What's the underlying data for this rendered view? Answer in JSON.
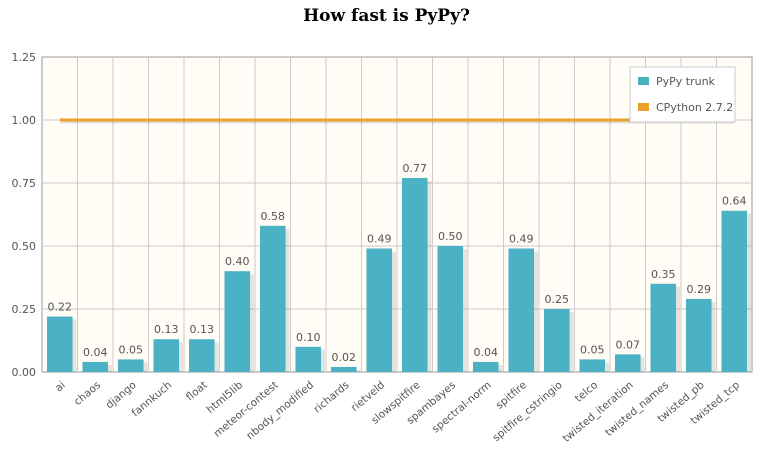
{
  "title": "How fast is PyPy?",
  "colors": {
    "bar": "#4bb2c5",
    "baseline": "#eaa228",
    "plot_bg": "#fffdf6",
    "grid": "#cccccc"
  },
  "chart_data": {
    "type": "bar",
    "title": "How fast is PyPy?",
    "xlabel": "",
    "ylabel": "",
    "ylim": [
      0,
      1.25
    ],
    "yticks": [
      "0.00",
      "0.25",
      "0.50",
      "0.75",
      "1.00",
      "1.25"
    ],
    "categories": [
      "ai",
      "chaos",
      "django",
      "fannkuch",
      "float",
      "html5lib",
      "meteor-contest",
      "nbody_modified",
      "richards",
      "rietveld",
      "slowspitfire",
      "spambayes",
      "spectral-norm",
      "spitfire",
      "spitfire_cstringio",
      "telco",
      "twisted_iteration",
      "twisted_names",
      "twisted_pb",
      "twisted_tcp"
    ],
    "series": [
      {
        "name": "PyPy trunk",
        "type": "bar",
        "values": [
          0.22,
          0.04,
          0.05,
          0.13,
          0.13,
          0.4,
          0.58,
          0.1,
          0.02,
          0.49,
          0.77,
          0.5,
          0.04,
          0.49,
          0.25,
          0.05,
          0.07,
          0.35,
          0.29,
          0.64
        ],
        "value_labels": [
          "0.22",
          "0.04",
          "0.05",
          "0.13",
          "0.13",
          "0.40",
          "0.58",
          "0.10",
          "0.02",
          "0.49",
          "0.77",
          "0.50",
          "0.04",
          "0.49",
          "0.25",
          "0.05",
          "0.07",
          "0.35",
          "0.29",
          "0.64"
        ],
        "labeled": [
          true,
          true,
          true,
          true,
          true,
          true,
          true,
          true,
          true,
          true,
          true,
          true,
          true,
          true,
          true,
          true,
          true,
          true,
          true,
          true
        ]
      },
      {
        "name": "CPython 2.7.2",
        "type": "line",
        "value": 1.0
      }
    ],
    "legend": {
      "position": "top-right",
      "entries": [
        "PyPy trunk",
        "CPython 2.7.2"
      ]
    },
    "grid": true
  }
}
